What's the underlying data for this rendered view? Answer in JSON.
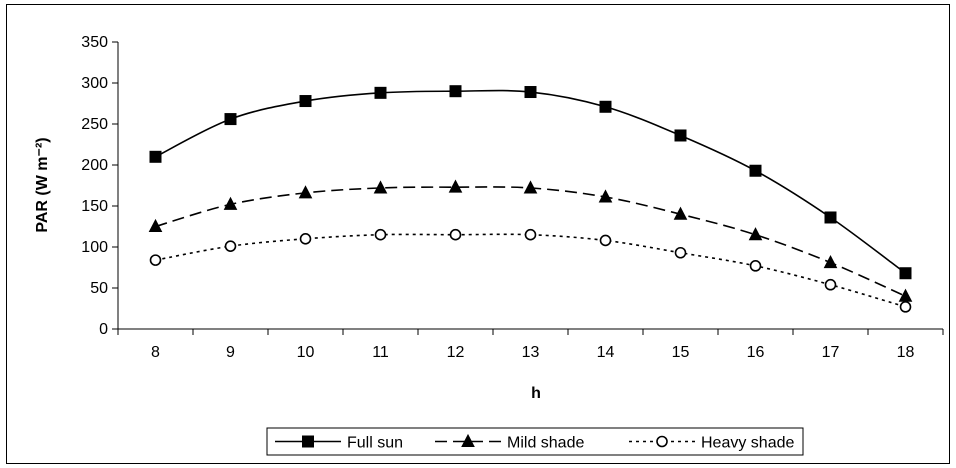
{
  "chart_data": {
    "type": "line",
    "title": "",
    "xlabel": "h",
    "ylabel": "PAR (W m⁻²)",
    "x": [
      8,
      9,
      10,
      11,
      12,
      13,
      14,
      15,
      16,
      17,
      18
    ],
    "ylim": [
      0,
      350
    ],
    "yticks": [
      0,
      50,
      100,
      150,
      200,
      250,
      300,
      350
    ],
    "grid": false,
    "legend_position": "bottom",
    "series": [
      {
        "name": "Full sun",
        "line_style": "solid",
        "marker": "filled-square",
        "color": "#000000",
        "values": [
          210,
          256,
          278,
          288,
          290,
          289,
          271,
          236,
          193,
          136,
          68
        ]
      },
      {
        "name": "Mild shade",
        "line_style": "dashed",
        "marker": "filled-triangle",
        "color": "#000000",
        "values": [
          125,
          152,
          166,
          172,
          173,
          172,
          161,
          140,
          115,
          81,
          40
        ]
      },
      {
        "name": "Heavy shade",
        "line_style": "dotted",
        "marker": "open-circle",
        "color": "#000000",
        "values": [
          84,
          101,
          110,
          115,
          115,
          115,
          108,
          93,
          77,
          54,
          27
        ]
      }
    ]
  }
}
